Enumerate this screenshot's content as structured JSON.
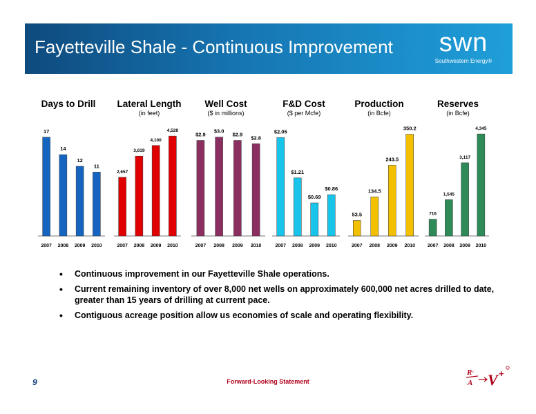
{
  "header": {
    "title": "Fayetteville Shale - Continuous Improvement",
    "logo_word": "swn",
    "logo_sub": "Southwestern Energy®",
    "banner_color": "#1676b3"
  },
  "chart_data": [
    {
      "type": "bar",
      "title": "Days to Drill",
      "subtitle": "",
      "categories": [
        "2007",
        "2008",
        "2009",
        "2010"
      ],
      "values": [
        17,
        14,
        12,
        11
      ],
      "labels": [
        "17",
        "14",
        "12",
        "11"
      ],
      "color": "#1565c0",
      "ylim": [
        0,
        19
      ]
    },
    {
      "type": "bar",
      "title": "Lateral Length",
      "subtitle": "(in feet)",
      "categories": [
        "2007",
        "2008",
        "2009",
        "2010"
      ],
      "values": [
        2657,
        3619,
        4100,
        4528
      ],
      "labels": [
        "2,657",
        "3,619",
        "4,100",
        "4,528"
      ],
      "color": "#e00000",
      "ylim": [
        0,
        5000
      ]
    },
    {
      "type": "bar",
      "title": "Well Cost",
      "subtitle": "($ in millions)",
      "categories": [
        "2007",
        "2008",
        "2009",
        "2010"
      ],
      "values": [
        2.9,
        3.0,
        2.9,
        2.8
      ],
      "labels": [
        "$2.9",
        "$3.0",
        "$2.9",
        "$2.8"
      ],
      "color": "#8b2f61",
      "ylim": [
        0,
        3.35
      ]
    },
    {
      "type": "bar",
      "title": "F&D Cost",
      "subtitle": "($ per Mcfe)",
      "categories": [
        "2007",
        "2008",
        "2009",
        "2010"
      ],
      "values": [
        2.05,
        1.21,
        0.69,
        0.86
      ],
      "labels": [
        "$2.05",
        "$1.21",
        "$0.69",
        "$0.86"
      ],
      "color": "#19c4ea",
      "ylim": [
        0,
        2.3
      ]
    },
    {
      "type": "bar",
      "title": "Production",
      "subtitle": "(in Bcfe)",
      "categories": [
        "2007",
        "2008",
        "2009",
        "2010"
      ],
      "values": [
        53.5,
        134.5,
        243.5,
        350.2
      ],
      "labels": [
        "53.5",
        "134.5",
        "243.5",
        "350.2"
      ],
      "color": "#f2c000",
      "ylim": [
        0,
        380
      ]
    },
    {
      "type": "bar",
      "title": "Reserves",
      "subtitle": "(in Bcfe)",
      "categories": [
        "2007",
        "2008",
        "2009",
        "2010"
      ],
      "values": [
        716,
        1545,
        3117,
        4345
      ],
      "labels": [
        "716",
        "1,545",
        "3,117",
        "4,345"
      ],
      "color": "#2e8b57",
      "ylim": [
        0,
        4700
      ]
    }
  ],
  "bullets": [
    "Continuous improvement in our Fayetteville Shale operations.",
    "Current remaining inventory of over 8,000 net wells on approximately 600,000 net acres drilled to date, greater than 15 years of drilling at current pace.",
    "Contiguous acreage position allow us economies of scale and operating flexibility."
  ],
  "footer": {
    "page_number": "9",
    "link_text": "Forward-Looking Statement",
    "rav_logo": "R/A → V+"
  }
}
